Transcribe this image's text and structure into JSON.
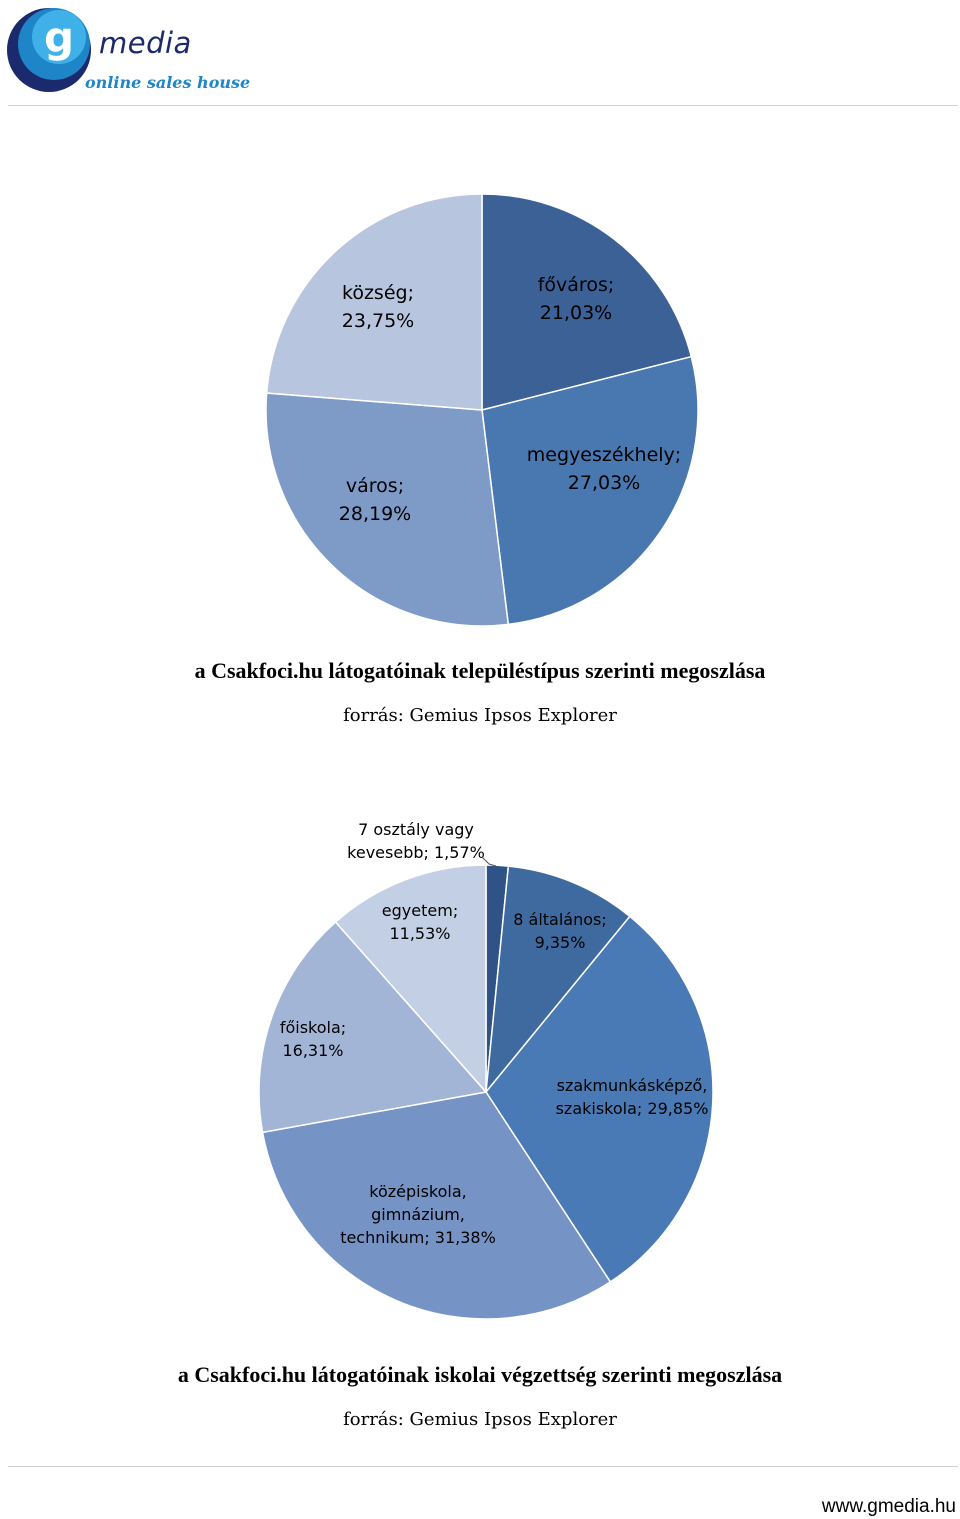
{
  "brand": {
    "logo_letter": "g",
    "name": "media",
    "tagline": "online sales house",
    "colors": {
      "navy": "#1a2a6c",
      "blue": "#1e86c8",
      "light": "#3fb0e8"
    }
  },
  "footer": {
    "url": "www.gmedia.hu"
  },
  "chart_data": [
    {
      "type": "pie",
      "title": "a Csakfoci.hu látogatóinak településtípus szerinti megoszlása",
      "source": "forrás: Gemius Ipsos Explorer",
      "slices": [
        {
          "label_lines": [
            "főváros;",
            "21,03%"
          ],
          "value": 21.03,
          "color": "#3b6196"
        },
        {
          "label_lines": [
            "megyeszékhely;",
            "27,03%"
          ],
          "value": 27.03,
          "color": "#4977b0"
        },
        {
          "label_lines": [
            "város;",
            "28,19%"
          ],
          "value": 28.19,
          "color": "#7e9bc8"
        },
        {
          "label_lines": [
            "község;",
            "23,75%"
          ],
          "value": 23.75,
          "color": "#b7c5df"
        }
      ]
    },
    {
      "type": "pie",
      "title": "a Csakfoci.hu látogatóinak iskolai végzettség szerinti megoszlása",
      "source": "forrás: Gemius Ipsos Explorer",
      "slices": [
        {
          "label_lines": [
            "7 osztály vagy",
            "kevesebb; 1,57%"
          ],
          "value": 1.57,
          "color": "#2f5386"
        },
        {
          "label_lines": [
            "8 általános;",
            "9,35%"
          ],
          "value": 9.35,
          "color": "#3e6aa0"
        },
        {
          "label_lines": [
            "szakmunkásképző,",
            "szakiskola; 29,85%"
          ],
          "value": 29.85,
          "color": "#4a7ab5"
        },
        {
          "label_lines": [
            "középiskola,",
            "gimnázium,",
            "technikum; 31,38%"
          ],
          "value": 31.38,
          "color": "#7593c5"
        },
        {
          "label_lines": [
            "főiskola;",
            "16,31%"
          ],
          "value": 16.31,
          "color": "#a3b5d7"
        },
        {
          "label_lines": [
            "egyetem;",
            "11,53%"
          ],
          "value": 11.53,
          "color": "#c3cfe5"
        }
      ]
    }
  ]
}
